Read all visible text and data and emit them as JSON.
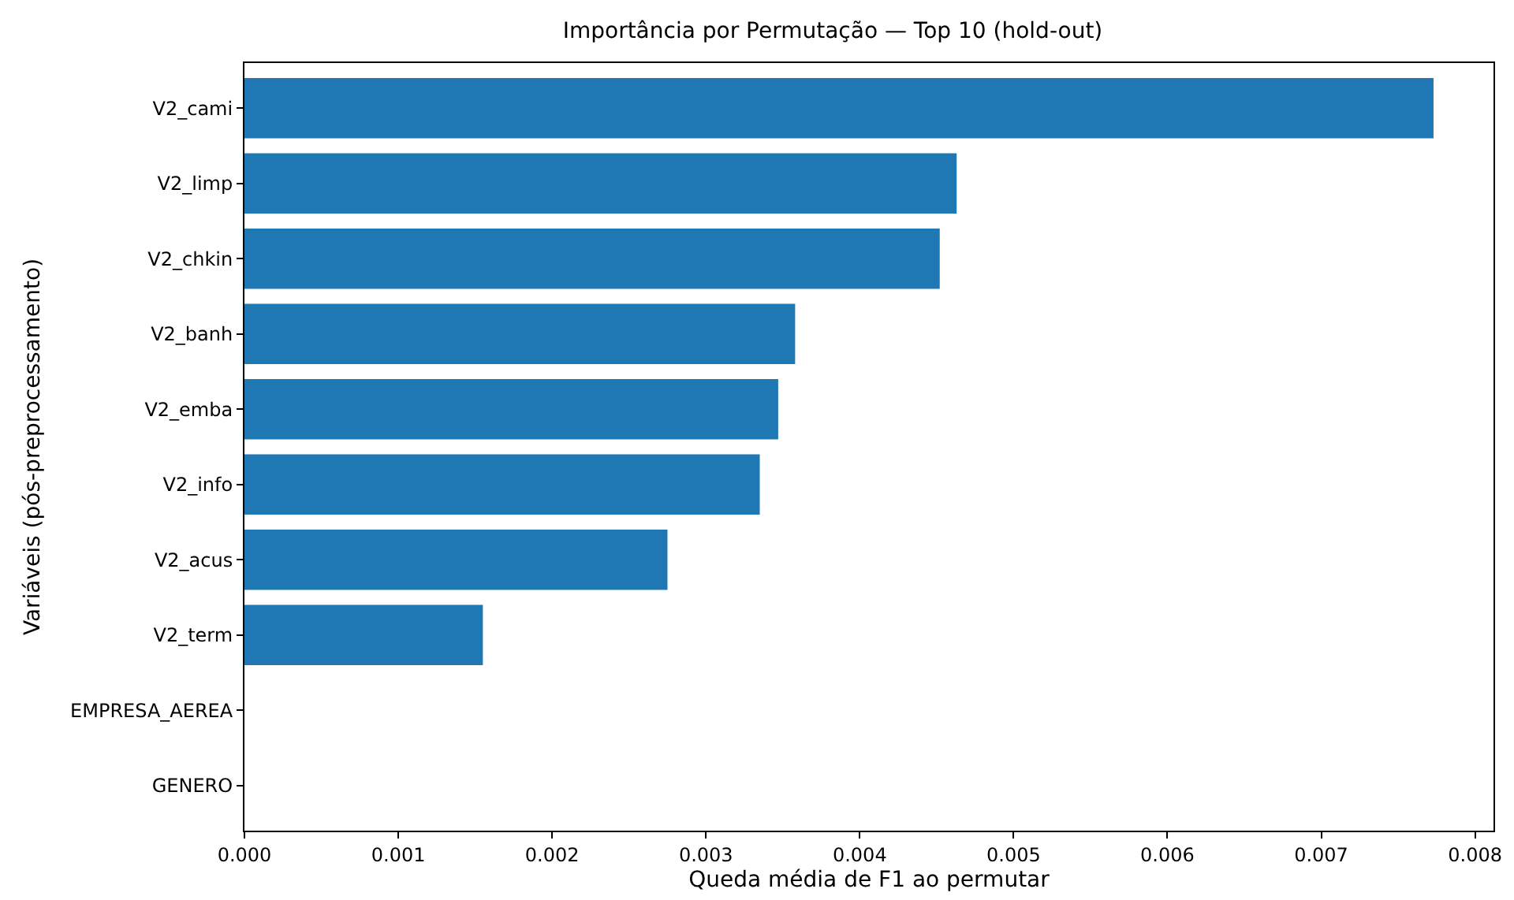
{
  "chart_data": {
    "type": "bar",
    "orientation": "horizontal",
    "title": "Importância por Permutação — Top 10 (hold-out)",
    "xlabel": "Queda média de F1 ao permutar",
    "ylabel": "Variáveis (pós-preprocessamento)",
    "categories": [
      "V2_cami",
      "V2_limp",
      "V2_chkin",
      "V2_banh",
      "V2_emba",
      "V2_info",
      "V2_acus",
      "V2_term",
      "EMPRESA_AEREA",
      "GENERO"
    ],
    "values": [
      0.00773,
      0.00463,
      0.00452,
      0.00358,
      0.00347,
      0.00335,
      0.00275,
      0.00155,
      0,
      0
    ],
    "color": "#1f77b4",
    "xlim": [
      0,
      0.00812
    ],
    "xticks": [
      {
        "value": 0,
        "label": "0.000"
      },
      {
        "value": 0.001,
        "label": "0.001"
      },
      {
        "value": 0.002,
        "label": "0.002"
      },
      {
        "value": 0.003,
        "label": "0.003"
      },
      {
        "value": 0.004,
        "label": "0.004"
      },
      {
        "value": 0.005,
        "label": "0.005"
      },
      {
        "value": 0.006,
        "label": "0.006"
      },
      {
        "value": 0.007,
        "label": "0.007"
      },
      {
        "value": 0.008,
        "label": "0.008"
      }
    ]
  }
}
